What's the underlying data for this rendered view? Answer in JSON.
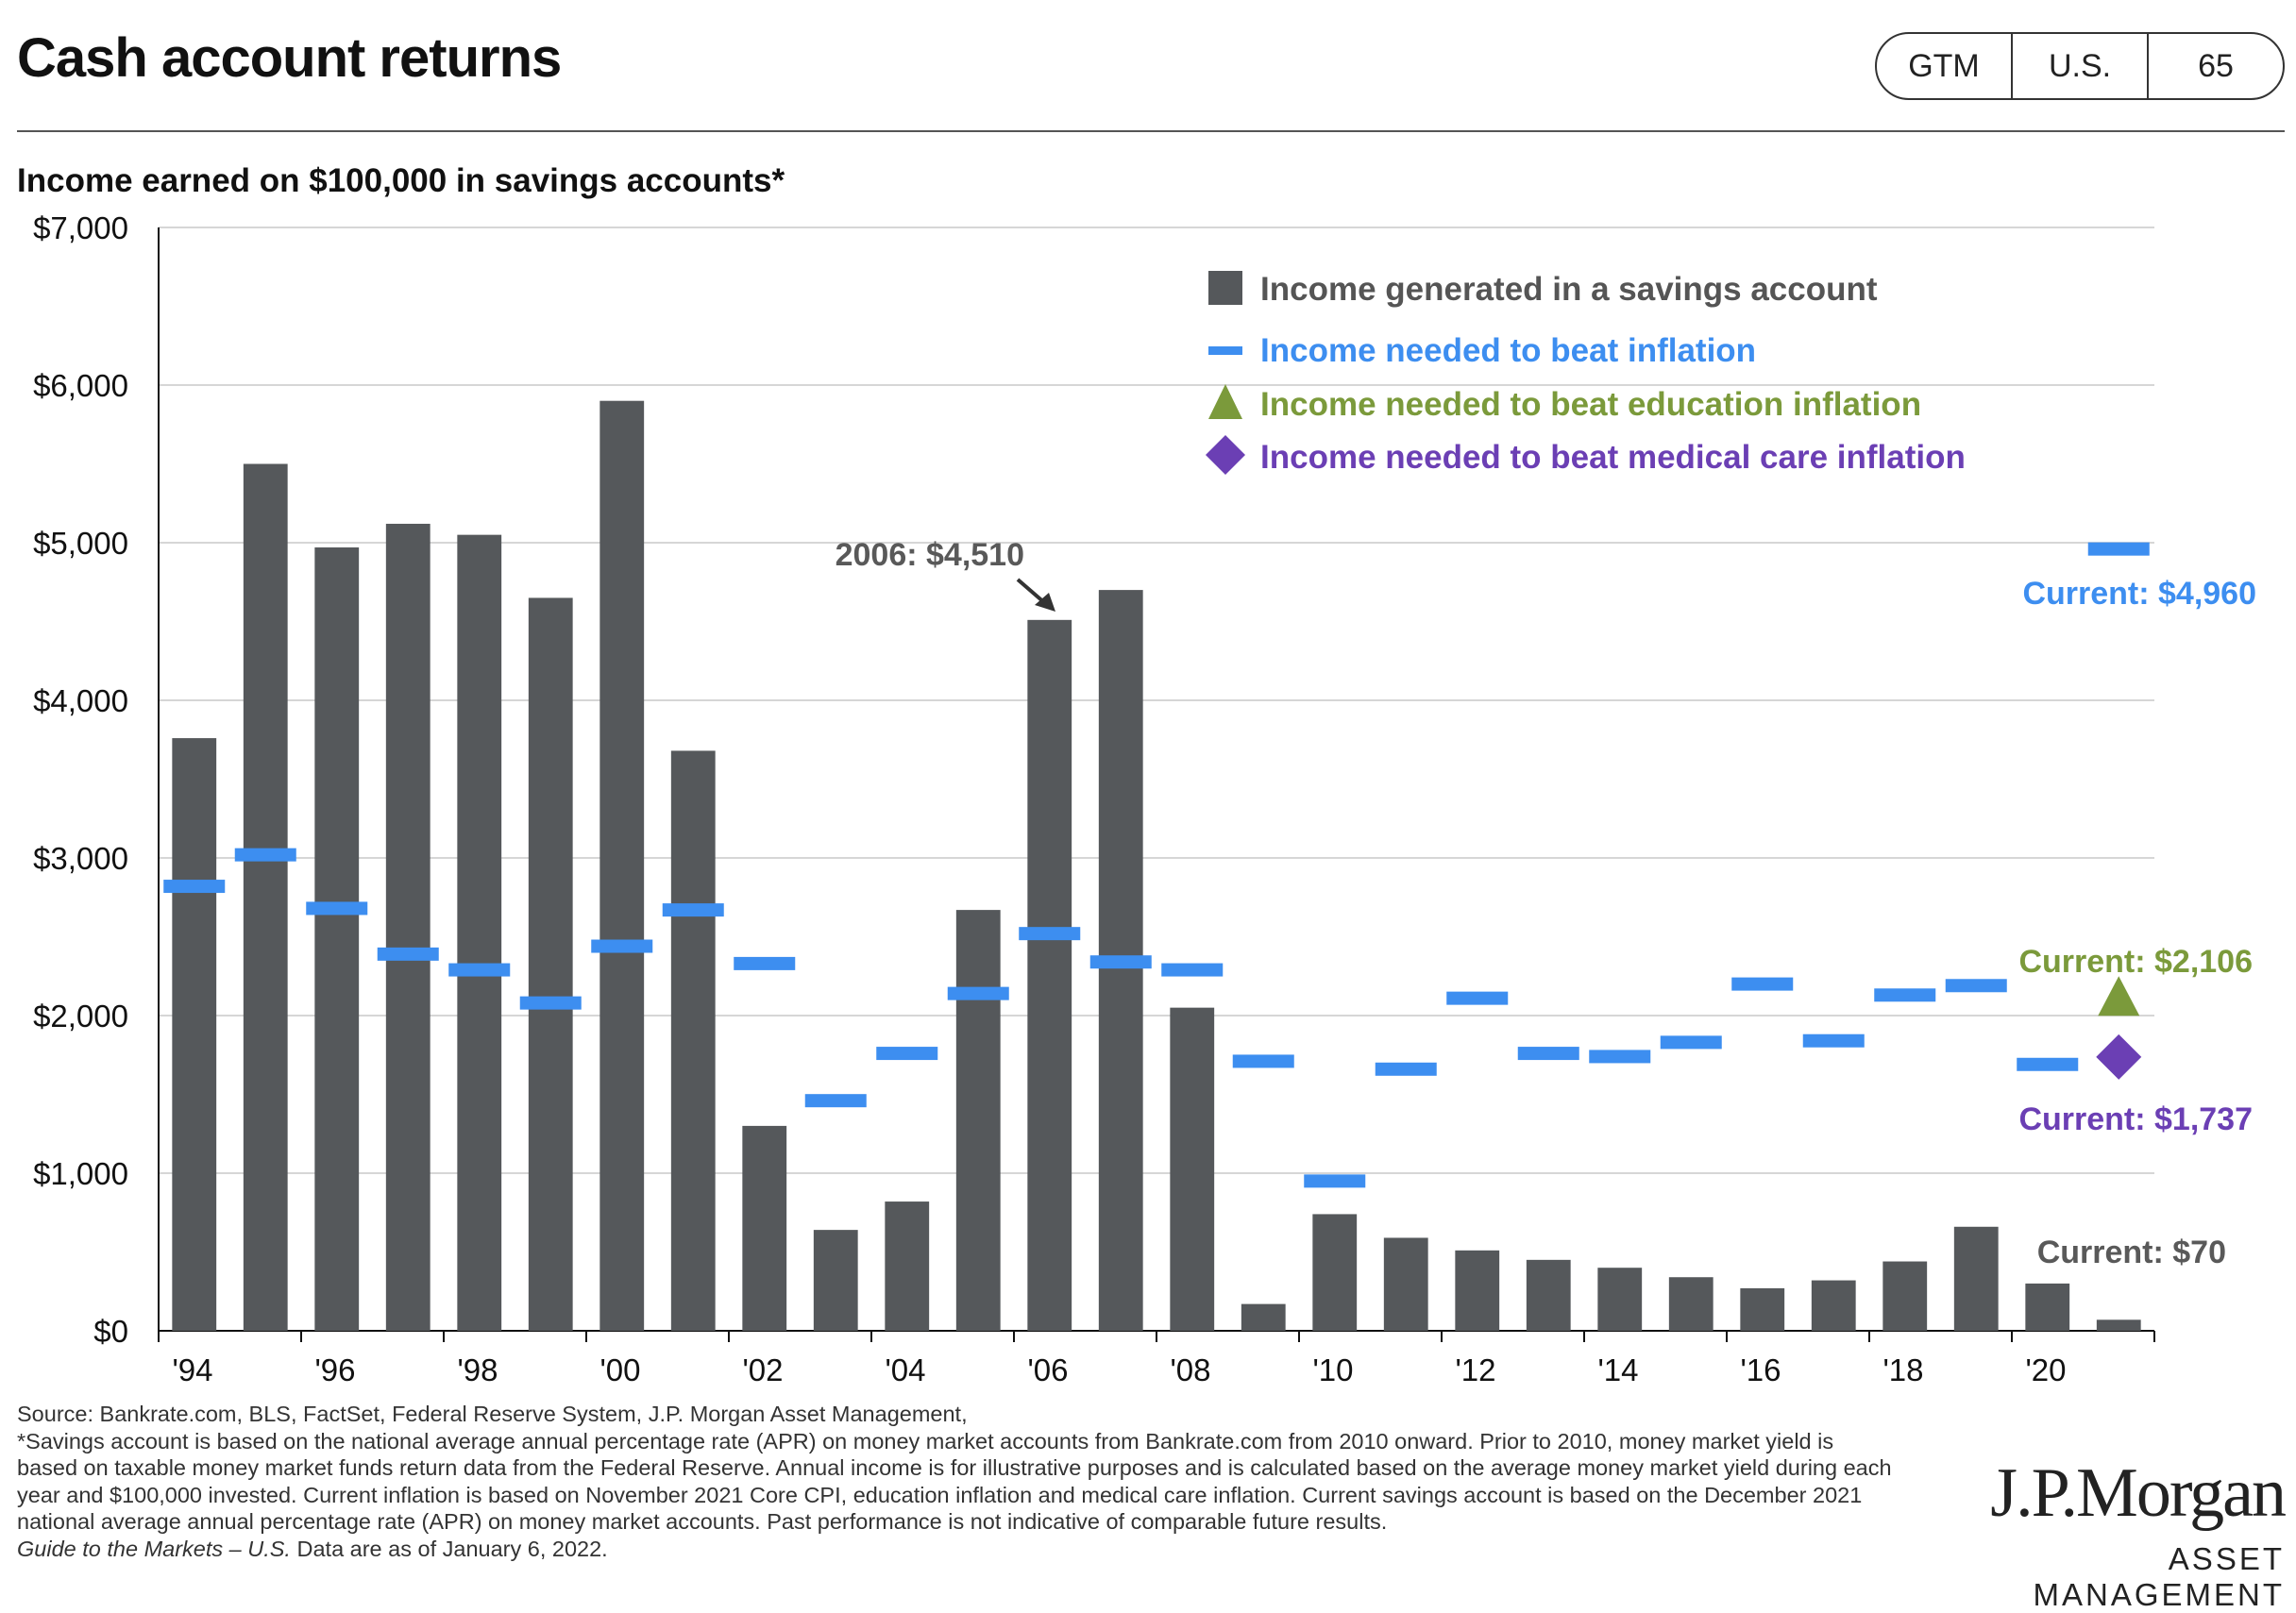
{
  "header": {
    "title": "Cash account returns",
    "badges": [
      "GTM",
      "U.S.",
      "65"
    ],
    "subtitle": "Income earned on $100,000 in savings accounts*"
  },
  "colors": {
    "bar": "#55585b",
    "inflation": "#3d8ef0",
    "education": "#7b9a3b",
    "medical": "#6b3fb4",
    "annotation": "#595959"
  },
  "chart_data": {
    "type": "bar",
    "title": "Income earned on $100,000 in savings accounts*",
    "xlabel": "",
    "ylabel": "",
    "ylim": [
      0,
      7000
    ],
    "yticks": [
      0,
      1000,
      2000,
      3000,
      4000,
      5000,
      6000,
      7000
    ],
    "ytick_labels": [
      "$0",
      "$1,000",
      "$2,000",
      "$3,000",
      "$4,000",
      "$5,000",
      "$6,000",
      "$7,000"
    ],
    "grid": true,
    "legend_position": "top-right",
    "categories": [
      "1994",
      "1995",
      "1996",
      "1997",
      "1998",
      "1999",
      "2000",
      "2001",
      "2002",
      "2003",
      "2004",
      "2005",
      "2006",
      "2007",
      "2008",
      "2009",
      "2010",
      "2011",
      "2012",
      "2013",
      "2014",
      "2015",
      "2016",
      "2017",
      "2018",
      "2019",
      "2020",
      "2021"
    ],
    "xtick_labels": [
      "'94",
      "'96",
      "'98",
      "'00",
      "'02",
      "'04",
      "'06",
      "'08",
      "'10",
      "'12",
      "'14",
      "'16",
      "'18",
      "'20"
    ],
    "series": [
      {
        "name": "Income generated in a savings  account",
        "kind": "bar",
        "values": [
          3760,
          5500,
          4970,
          5120,
          5050,
          4650,
          5900,
          3680,
          1300,
          640,
          820,
          2670,
          4510,
          4700,
          2050,
          170,
          740,
          590,
          510,
          450,
          400,
          340,
          270,
          320,
          440,
          660,
          300,
          70
        ]
      },
      {
        "name": "Income needed to beat inflation",
        "kind": "dash",
        "values": [
          2820,
          3020,
          2680,
          2390,
          2290,
          2080,
          2440,
          2670,
          2330,
          1460,
          1760,
          2140,
          2520,
          2340,
          2290,
          1710,
          950,
          1660,
          2110,
          1760,
          1740,
          1830,
          2200,
          1840,
          2130,
          2190,
          1690,
          4960
        ]
      },
      {
        "name": "Income needed to beat education inflation",
        "kind": "triangle",
        "x": "2021",
        "value": 2106
      },
      {
        "name": "Income needed to beat medical care inflation",
        "kind": "diamond",
        "x": "2021",
        "value": 1737
      }
    ],
    "annotations": [
      {
        "text": "2006:  $4,510",
        "x": "2006",
        "value": 4510
      },
      {
        "text": "Current:  $4,960",
        "value": 4960
      },
      {
        "text": "Current:  $2,106",
        "value": 2106
      },
      {
        "text": "Current:  $1,737",
        "value": 1737
      },
      {
        "text": "Current:  $70",
        "value": 70
      }
    ]
  },
  "footnote": {
    "source": "Source: Bankrate.com, BLS, FactSet, Federal Reserve System, J.P. Morgan Asset Management,",
    "note": "*Savings account is based on the national average annual percentage rate (APR) on money market accounts from Bankrate.com from 2010 onward. Prior to 2010, money market yield is based on taxable money market funds return data from the Federal Reserve. Annual income is for illustrative purposes and is calculated based on the average money market yield during each year and $100,000 invested. Current inflation is based on November 2021 Core CPI, education inflation and medical care inflation. Current savings account is based on the December 2021 national average annual percentage rate (APR) on money market accounts. Past performance is not indicative of comparable future results.",
    "guide_italic": "Guide to the Markets – U.S.",
    "guide_rest": " Data are as of January 6, 2022."
  },
  "logo": {
    "brand": "J.P.Morgan",
    "sub": "ASSET MANAGEMENT"
  }
}
